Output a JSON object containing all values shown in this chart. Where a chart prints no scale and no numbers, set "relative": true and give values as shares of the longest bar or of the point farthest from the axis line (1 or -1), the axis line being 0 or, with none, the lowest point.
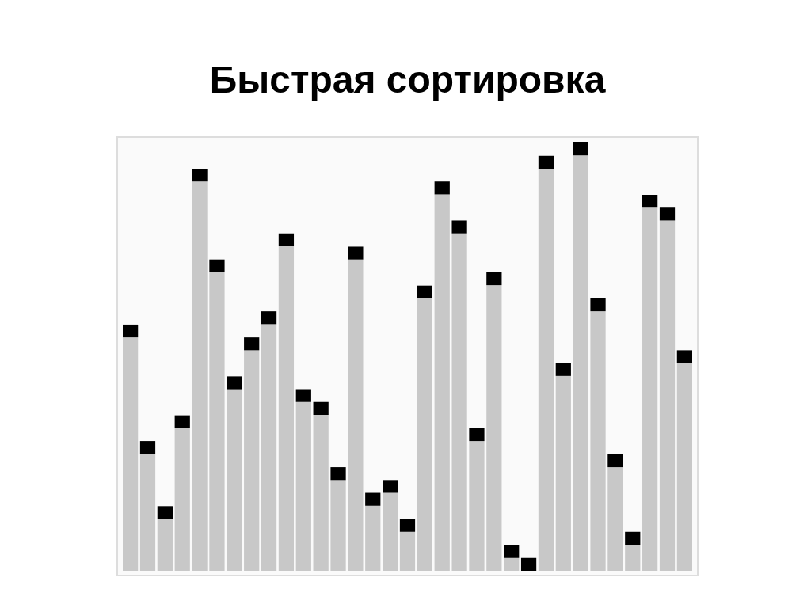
{
  "chart_data": {
    "type": "bar",
    "title": "Быстрая сортировка",
    "relative": true,
    "stacked": true,
    "legend": false,
    "categories": [
      null,
      null,
      null,
      null,
      null,
      null,
      null,
      null,
      null,
      null,
      null,
      null,
      null,
      null,
      null,
      null,
      null,
      null,
      null,
      null,
      null,
      null,
      null,
      null,
      null,
      null,
      null,
      null,
      null,
      null,
      null,
      null,
      null
    ],
    "series": [
      {
        "color": "#c8c8c8",
        "values": [
          0.545,
          0.273,
          0.121,
          0.333,
          0.909,
          0.697,
          0.424,
          0.515,
          0.576,
          0.758,
          0.394,
          0.364,
          0.212,
          0.727,
          0.152,
          0.182,
          0.091,
          0.636,
          0.879,
          0.788,
          0.303,
          0.667,
          0.03,
          0,
          0.939,
          0.455,
          0.97,
          0.606,
          0.242,
          0.061,
          0.848,
          0.818,
          0.485
        ]
      },
      {
        "color": "#000000",
        "values": [
          0.03,
          0.03,
          0.03,
          0.03,
          0.03,
          0.03,
          0.03,
          0.03,
          0.03,
          0.03,
          0.03,
          0.03,
          0.03,
          0.03,
          0.03,
          0.03,
          0.03,
          0.03,
          0.03,
          0.03,
          0.03,
          0.03,
          0.03,
          0.03,
          0.03,
          0.03,
          0.03,
          0.03,
          0.03,
          0.03,
          0.03,
          0.03,
          0.03
        ]
      }
    ]
  }
}
